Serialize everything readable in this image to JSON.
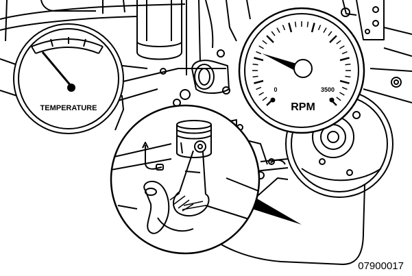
{
  "temperature_gauge": {
    "label": "TEMPERATURE"
  },
  "rpm_gauge": {
    "label": "RPM",
    "min_label": "0",
    "max_label": "3500"
  },
  "figure_id": "07900017"
}
